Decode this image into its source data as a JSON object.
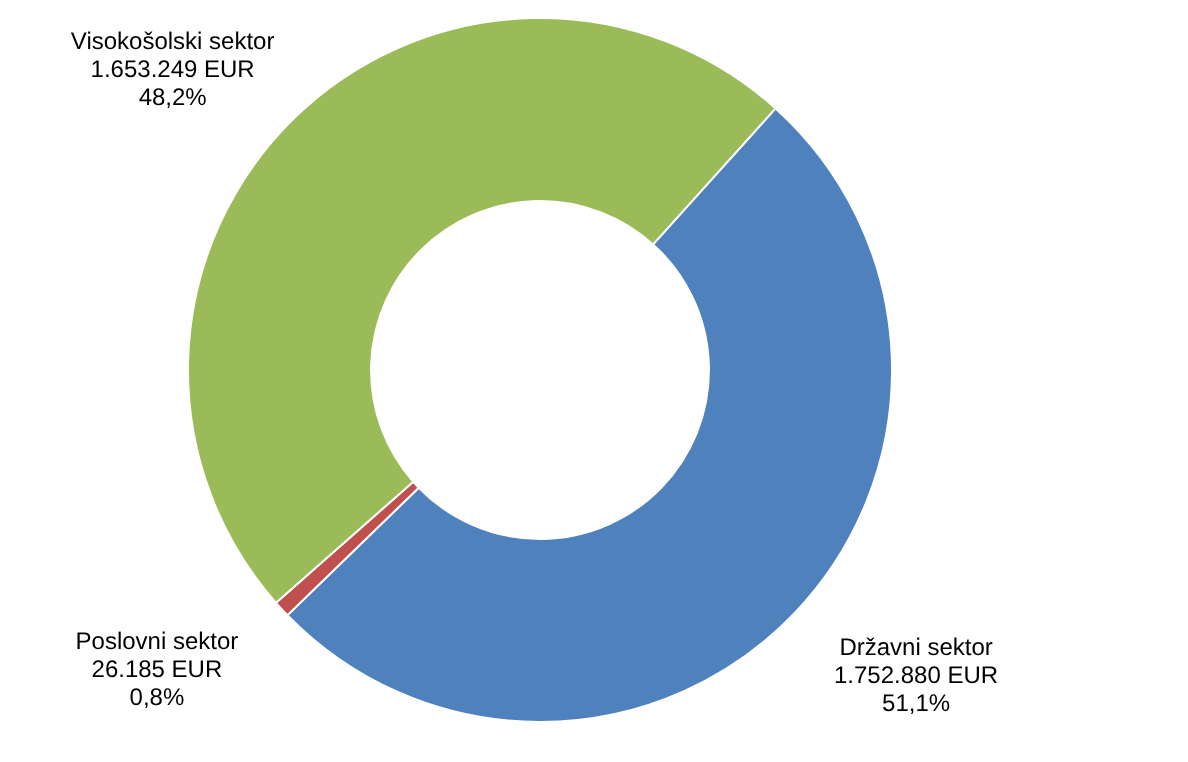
{
  "chart_data": {
    "type": "donut",
    "categories": [
      "Državni sektor",
      "Poslovni sektor",
      "Visokošolski sektor"
    ],
    "values": [
      1752880,
      26185,
      1653249
    ],
    "value_labels": [
      "1.752.880 EUR\n51,1%",
      "26.185 EUR\n0,8%",
      "1.653.249 EUR\n48,2%"
    ],
    "colors": [
      "#4f81bd",
      "#c0504d",
      "#9bbb59"
    ]
  }
}
